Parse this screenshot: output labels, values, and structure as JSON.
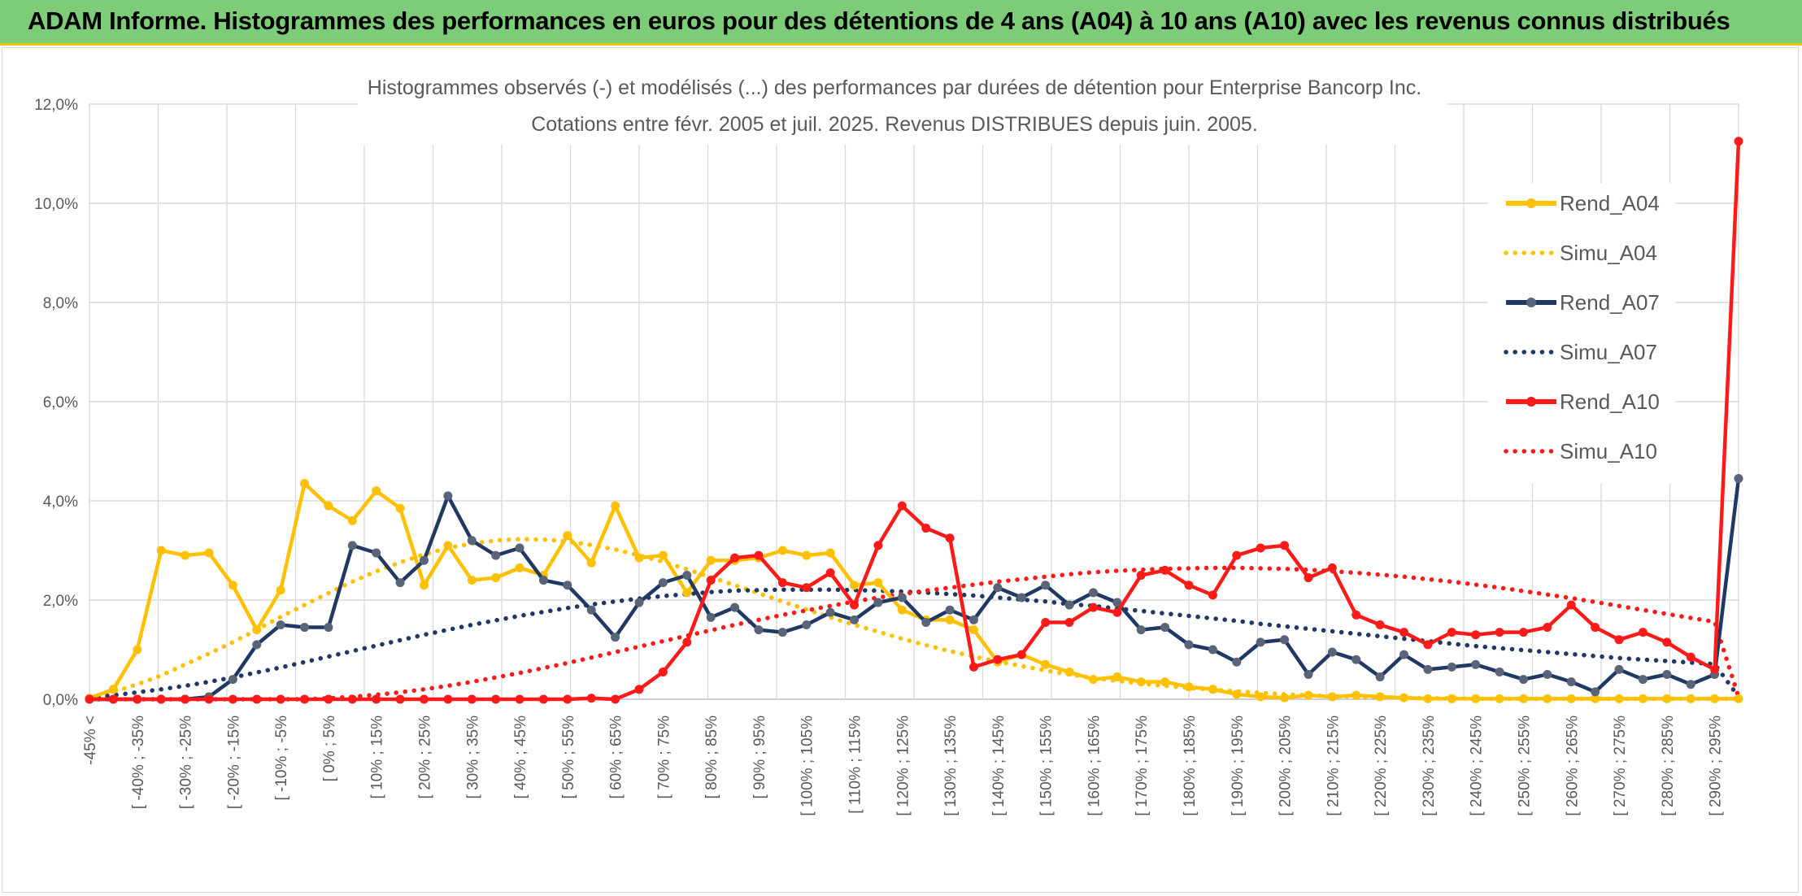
{
  "header": {
    "title": "ADAM Informe. Histogrammes des performances en euros pour des détentions de 4 ans (A04) à 10 ans (A10) avec les revenus connus distribués"
  },
  "colors": {
    "a04": "#ffc000",
    "a07": "#1f3864",
    "a07_marker": "#5a6478",
    "a10": "#ff1a1a",
    "banner": "#7dcc78",
    "grid": "#d9d9d9"
  },
  "chart_data": {
    "type": "line",
    "title_line1": "Histogrammes observés (-) et modélisés (...) des performances par durées de détention pour Enterprise Bancorp Inc.",
    "title_line2": "Cotations entre févr. 2005 et juil. 2025. Revenus DISTRIBUES depuis juin. 2005.",
    "yticks": [
      "0,0%",
      "2,0%",
      "4,0%",
      "6,0%",
      "8,0%",
      "10,0%",
      "12,0%"
    ],
    "ylim": [
      0,
      12
    ],
    "grid": true,
    "legend_position": "right",
    "x_tick_labels": [
      "-45% <",
      "[ -40% ; -35%",
      "[ -30% ; -25%",
      "[ -20% ; -15%",
      "[ -10% ; -5%",
      "[ 0% ; 5%",
      "[ 10% ; 15%",
      "[ 20% ; 25%",
      "[ 30% ; 35%",
      "[ 40% ; 45%",
      "[ 50% ; 55%",
      "[ 60% ; 65%",
      "[ 70% ; 75%",
      "[ 80% ; 85%",
      "[ 90% ; 95%",
      "[ 100% ; 105%",
      "[ 110% ; 115%",
      "[ 120% ; 125%",
      "[ 130% ; 135%",
      "[ 140% ; 145%",
      "[ 150% ; 155%",
      "[ 160% ; 165%",
      "[ 170% ; 175%",
      "[ 180% ; 185%",
      "[ 190% ; 195%",
      "[ 200% ; 205%",
      "[ 210% ; 215%",
      "[ 220% ; 225%",
      "[ 230% ; 235%",
      "[ 240% ; 245%",
      "[ 250% ; 255%",
      "[ 260% ; 265%",
      "[ 270% ; 275%",
      "[ 280% ; 285%",
      "[ 290% ; 295%"
    ],
    "series": [
      {
        "name": "Rend_A04",
        "style": "solid",
        "color": "#ffc000",
        "values": [
          0.02,
          0.2,
          1.0,
          3.0,
          2.9,
          2.95,
          2.3,
          1.4,
          2.2,
          4.35,
          3.9,
          3.6,
          4.2,
          3.85,
          2.3,
          3.1,
          2.4,
          2.45,
          2.65,
          2.5,
          3.3,
          2.75,
          3.9,
          2.85,
          2.9,
          2.15,
          2.8,
          2.8,
          2.85,
          3.0,
          2.9,
          2.95,
          2.3,
          2.35,
          1.8,
          1.6,
          1.6,
          1.4,
          0.75,
          0.9,
          0.7,
          0.55,
          0.4,
          0.45,
          0.35,
          0.35,
          0.25,
          0.2,
          0.1,
          0.05,
          0.03,
          0.08,
          0.05,
          0.08,
          0.05,
          0.03,
          0.01,
          0.01,
          0.01,
          0.01,
          0.01,
          0.01,
          0.01,
          0.01,
          0.01,
          0.01,
          0.01,
          0.01,
          0.01,
          0.01
        ]
      },
      {
        "name": "Simu_A04",
        "style": "dotted",
        "color": "#ffc000",
        "values": [
          0.02,
          0.15,
          0.3,
          0.48,
          0.7,
          0.92,
          1.15,
          1.4,
          1.66,
          1.9,
          2.14,
          2.37,
          2.58,
          2.76,
          2.92,
          3.05,
          3.14,
          3.2,
          3.23,
          3.22,
          3.18,
          3.11,
          3.02,
          2.9,
          2.77,
          2.62,
          2.46,
          2.3,
          2.14,
          1.97,
          1.81,
          1.65,
          1.5,
          1.36,
          1.22,
          1.09,
          0.97,
          0.86,
          0.76,
          0.67,
          0.58,
          0.5,
          0.43,
          0.37,
          0.32,
          0.27,
          0.23,
          0.19,
          0.16,
          0.13,
          0.1,
          0.08,
          0.06,
          0.05,
          0.04,
          0.03,
          0.02,
          0.02,
          0.01,
          0.01,
          0.01,
          0.01,
          0.01,
          0.01,
          0.01,
          0.01,
          0.01,
          0.01,
          0.01,
          0.01
        ]
      },
      {
        "name": "Rend_A07",
        "style": "solid",
        "color": "#1f3864",
        "values": [
          0,
          0,
          0,
          0,
          0,
          0.05,
          0.4,
          1.1,
          1.5,
          1.45,
          1.45,
          3.1,
          2.95,
          2.35,
          2.8,
          4.1,
          3.2,
          2.9,
          3.05,
          2.4,
          2.3,
          1.8,
          1.25,
          1.95,
          2.35,
          2.5,
          1.65,
          1.85,
          1.4,
          1.35,
          1.5,
          1.75,
          1.6,
          1.95,
          2.05,
          1.55,
          1.8,
          1.6,
          2.25,
          2.05,
          2.3,
          1.9,
          2.15,
          1.95,
          1.4,
          1.45,
          1.1,
          1.0,
          0.75,
          1.15,
          1.2,
          0.5,
          0.95,
          0.8,
          0.45,
          0.9,
          0.6,
          0.65,
          0.7,
          0.55,
          0.4,
          0.5,
          0.35,
          0.15,
          0.6,
          0.4,
          0.5,
          0.3,
          0.5,
          4.45
        ]
      },
      {
        "name": "Simu_A07",
        "style": "dotted",
        "color": "#1f3864",
        "values": [
          0.02,
          0.08,
          0.14,
          0.2,
          0.27,
          0.35,
          0.44,
          0.54,
          0.64,
          0.75,
          0.86,
          0.97,
          1.08,
          1.19,
          1.3,
          1.4,
          1.5,
          1.59,
          1.68,
          1.76,
          1.84,
          1.91,
          1.97,
          2.03,
          2.08,
          2.12,
          2.16,
          2.19,
          2.2,
          2.21,
          2.21,
          2.21,
          2.2,
          2.19,
          2.17,
          2.15,
          2.12,
          2.09,
          2.05,
          2.01,
          1.97,
          1.92,
          1.88,
          1.83,
          1.78,
          1.73,
          1.68,
          1.63,
          1.58,
          1.52,
          1.47,
          1.42,
          1.37,
          1.32,
          1.27,
          1.22,
          1.17,
          1.12,
          1.07,
          1.03,
          0.99,
          0.95,
          0.91,
          0.87,
          0.83,
          0.8,
          0.77,
          0.74,
          0.71,
          0.05
        ]
      },
      {
        "name": "Rend_A10",
        "style": "solid",
        "color": "#ff1a1a",
        "values": [
          0,
          0,
          0,
          0,
          0,
          0,
          0,
          0,
          0,
          0,
          0,
          0,
          0,
          0,
          0,
          0,
          0,
          0,
          0,
          0,
          0,
          0.02,
          0,
          0.2,
          0.55,
          1.15,
          2.4,
          2.85,
          2.9,
          2.35,
          2.25,
          2.55,
          1.9,
          3.1,
          3.9,
          3.45,
          3.25,
          0.65,
          0.8,
          0.9,
          1.55,
          1.55,
          1.85,
          1.75,
          2.5,
          2.6,
          2.3,
          2.1,
          2.9,
          3.05,
          3.1,
          2.45,
          2.65,
          1.7,
          1.5,
          1.35,
          1.1,
          1.35,
          1.3,
          1.35,
          1.35,
          1.45,
          1.9,
          1.45,
          1.2,
          1.35,
          1.15,
          0.85,
          0.6,
          11.25
        ]
      },
      {
        "name": "Simu_A10",
        "style": "dotted",
        "color": "#ff1a1a",
        "values": [
          0,
          0,
          0,
          0,
          0,
          0,
          0,
          0,
          0,
          0,
          0.02,
          0.05,
          0.09,
          0.14,
          0.2,
          0.27,
          0.35,
          0.44,
          0.53,
          0.63,
          0.73,
          0.84,
          0.95,
          1.06,
          1.17,
          1.28,
          1.39,
          1.5,
          1.6,
          1.7,
          1.79,
          1.88,
          1.97,
          2.05,
          2.12,
          2.19,
          2.25,
          2.31,
          2.37,
          2.42,
          2.47,
          2.52,
          2.56,
          2.59,
          2.61,
          2.63,
          2.64,
          2.65,
          2.65,
          2.64,
          2.63,
          2.61,
          2.58,
          2.55,
          2.51,
          2.47,
          2.42,
          2.37,
          2.31,
          2.25,
          2.18,
          2.11,
          2.04,
          1.96,
          1.88,
          1.8,
          1.72,
          1.64,
          1.56,
          0.05
        ]
      }
    ]
  }
}
